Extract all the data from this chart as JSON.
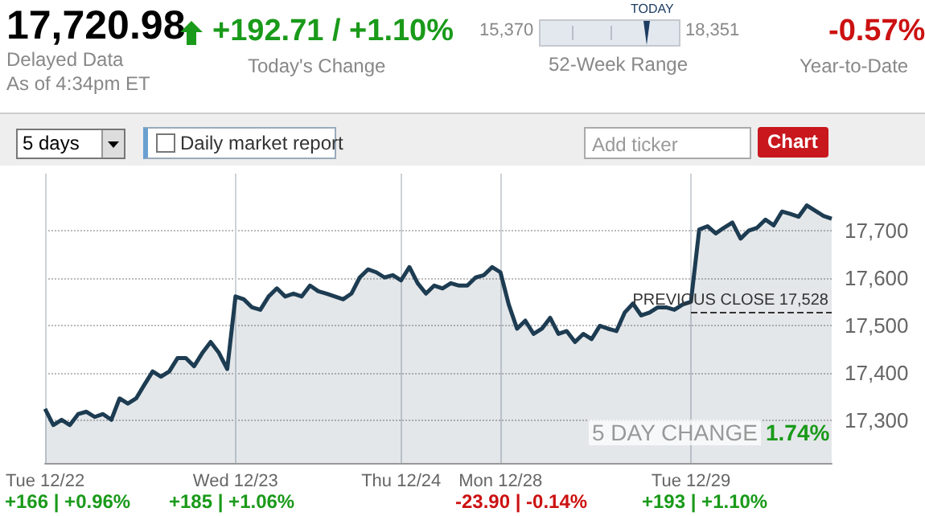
{
  "chart_data": {
    "type": "area",
    "title": "17,720.98",
    "categories": [
      "Tue 12/22",
      null,
      null,
      null,
      null,
      null,
      null,
      null,
      null,
      null,
      null,
      null,
      null,
      null,
      null,
      null,
      null,
      null,
      null,
      null,
      null,
      null,
      null,
      "Wed 12/23",
      null,
      null,
      null,
      null,
      null,
      null,
      null,
      null,
      null,
      null,
      null,
      null,
      null,
      null,
      null,
      null,
      null,
      null,
      null,
      "Thu 12/24",
      null,
      null,
      null,
      null,
      null,
      null,
      null,
      null,
      null,
      null,
      null,
      "Mon 12/28",
      null,
      null,
      null,
      null,
      null,
      null,
      null,
      null,
      null,
      null,
      null,
      null,
      null,
      null,
      null,
      null,
      null,
      null,
      null,
      null,
      null,
      null,
      "Tue 12/29",
      null,
      null,
      null,
      null,
      null,
      null,
      null,
      null,
      null,
      null,
      null,
      null,
      null,
      null,
      null,
      null,
      null
    ],
    "series": [
      {
        "color": "#1d3c52",
        "values": [
          17324,
          17290,
          17301,
          17290,
          17313,
          17318,
          17307,
          17313,
          17301,
          17346,
          17335,
          17346,
          17375,
          17403,
          17392,
          17403,
          17431,
          17431,
          17414,
          17442,
          17465,
          17442,
          17408,
          17561,
          17555,
          17538,
          17533,
          17561,
          17578,
          17561,
          17567,
          17561,
          17584,
          17572,
          17567,
          17561,
          17555,
          17567,
          17601,
          17618,
          17612,
          17601,
          17606,
          17595,
          17623,
          17589,
          17567,
          17584,
          17578,
          17589,
          17584,
          17584,
          17601,
          17606,
          17623,
          17612,
          17544,
          17493,
          17510,
          17482,
          17493,
          17516,
          17482,
          17488,
          17465,
          17482,
          17471,
          17499,
          17493,
          17488,
          17527,
          17546,
          17521,
          17527,
          17538,
          17538,
          17533,
          17544,
          17550,
          17702,
          17709,
          17694,
          17706,
          17717,
          17683,
          17700,
          17706,
          17723,
          17711,
          17740,
          17735,
          17729,
          17753,
          17742,
          17731,
          17725
        ]
      }
    ],
    "ylim": [
      17210,
      17820
    ],
    "yticks": [
      {
        "value": 17300,
        "label": "17,300"
      },
      {
        "value": 17400,
        "label": "17,400"
      },
      {
        "value": 17500,
        "label": "17,500"
      },
      {
        "value": 17600,
        "label": "17,600"
      },
      {
        "value": 17700,
        "label": "17,700"
      }
    ],
    "grid": true,
    "ref_lines": [
      {
        "axis": "y",
        "value": 17528,
        "label": "PREVIOUS CLOSE 17,528",
        "line_style": "dashed",
        "color": "#333333"
      }
    ],
    "annotations": [
      "Delayed Data",
      "As of 4:34pm ET",
      "+192.71 / +1.10%",
      "Today's Change",
      "15,370",
      "TODAY",
      "18,351",
      "52-Week Range",
      "-0.57%",
      "Year-to-Date",
      "5 days",
      "Daily market report",
      "Add ticker",
      "Chart",
      "5 DAY CHANGE",
      "1.74%",
      "+166 | +0.96%",
      "+185 | +1.06%",
      "-23.90 | -0.14%",
      "+193 | +1.10%"
    ]
  }
}
